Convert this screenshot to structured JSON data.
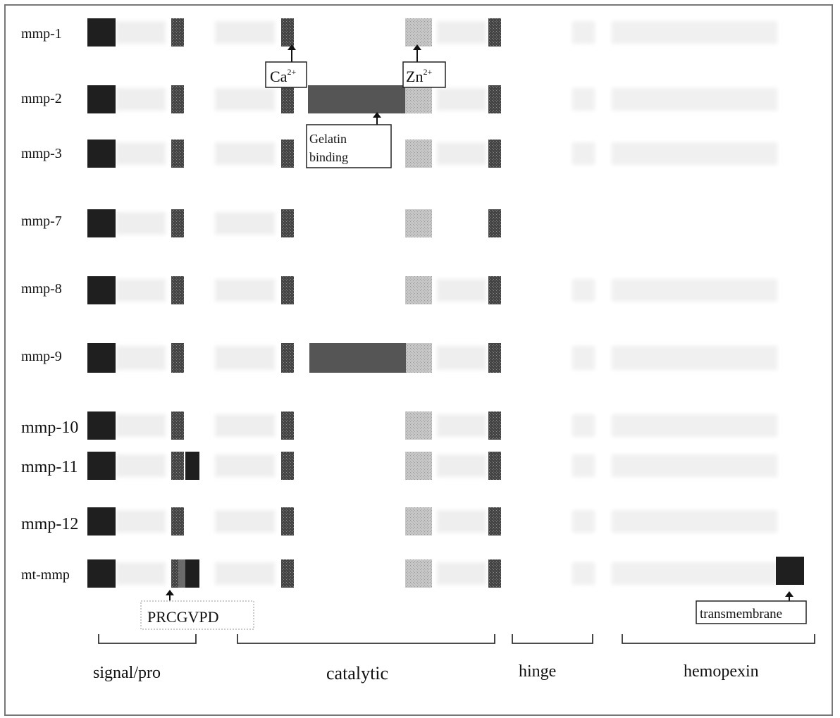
{
  "rows": [
    {
      "label": "mmp-1"
    },
    {
      "label": "mmp-2"
    },
    {
      "label": "mmp-3"
    },
    {
      "label": "mmp-7"
    },
    {
      "label": "mmp-8"
    },
    {
      "label": "mmp-9"
    },
    {
      "label": "mmp-10"
    },
    {
      "label": "mmp-11"
    },
    {
      "label": "mmp-12"
    },
    {
      "label": "mt-mmp"
    }
  ],
  "callouts": {
    "ca": {
      "base": "Ca",
      "sup": "2+"
    },
    "zn": {
      "base": "Zn",
      "sup": "2+"
    },
    "gelatin": {
      "line1": "Gelatin",
      "line2": "binding"
    },
    "prcgvpd": "PRCGVPD",
    "transmembrane": "transmembrane"
  },
  "domains": {
    "signal_pro": "signal/pro",
    "catalytic": "catalytic",
    "hinge": "hinge",
    "hemopexin": "hemopexin"
  },
  "colors": {
    "signal": "#1f1f1f",
    "dark_seg": "#3a3a3a",
    "mid_seg": "#6b6b6b",
    "gelatin": "#555555",
    "zinc": "#bdbdbd",
    "faint": "#ececec",
    "frame": "#777777"
  }
}
